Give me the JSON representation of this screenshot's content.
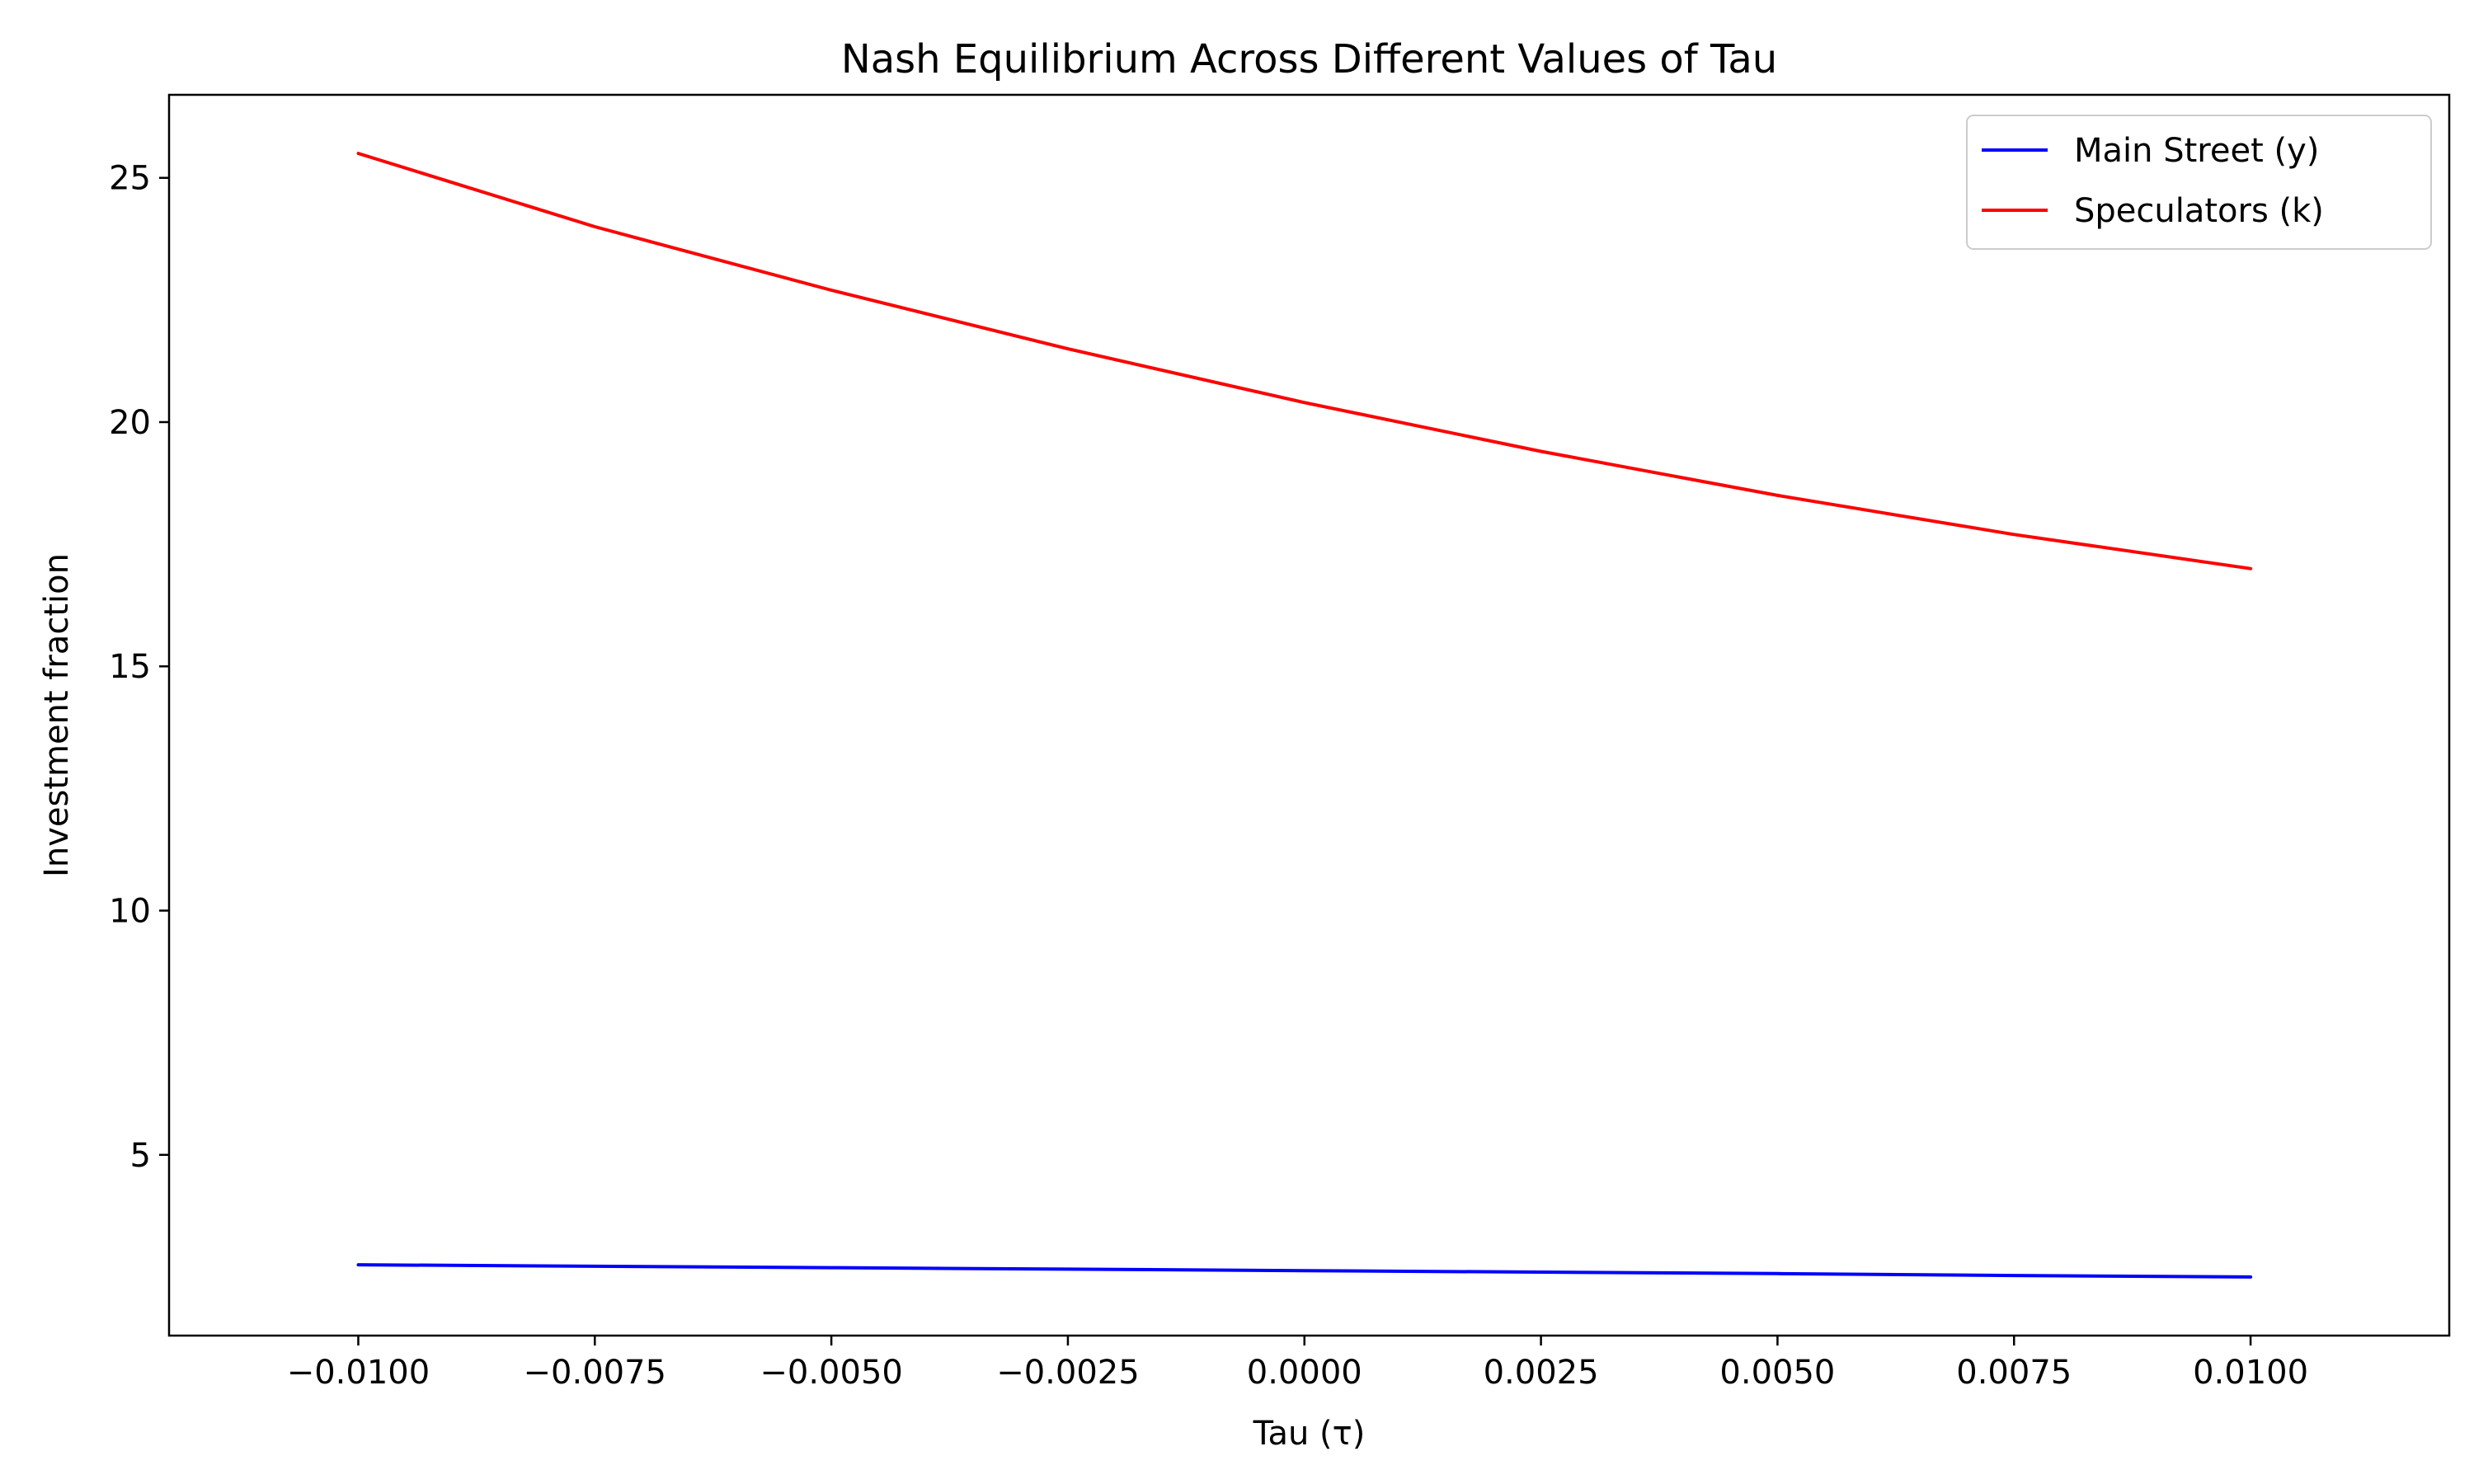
{
  "chart_data": {
    "type": "line",
    "title": "Nash Equilibrium Across Different Values of Tau",
    "xlabel": "Tau (τ)",
    "ylabel": "Investment fraction",
    "xlim": [
      -0.012,
      0.0121
    ],
    "ylim": [
      1.3,
      26.7
    ],
    "x_ticks": [
      -0.01,
      -0.0075,
      -0.005,
      -0.0025,
      0.0,
      0.0025,
      0.005,
      0.0075,
      0.01
    ],
    "x_tick_labels": [
      "−0.0100",
      "−0.0075",
      "−0.0050",
      "−0.0025",
      "0.0000",
      "0.0025",
      "0.0050",
      "0.0075",
      "0.0100"
    ],
    "y_ticks": [
      5,
      10,
      15,
      20,
      25
    ],
    "y_tick_labels": [
      "5",
      "10",
      "15",
      "20",
      "25"
    ],
    "grid": false,
    "legend_position": "top-right",
    "x": [
      -0.01,
      -0.0075,
      -0.005,
      -0.0025,
      0.0,
      0.0025,
      0.005,
      0.0075,
      0.01
    ],
    "series": [
      {
        "name": "Main Street (y)",
        "color": "#0000ff",
        "values": [
          2.75,
          2.72,
          2.69,
          2.66,
          2.63,
          2.6,
          2.57,
          2.53,
          2.5
        ]
      },
      {
        "name": "Speculators (k)",
        "color": "#ff0000",
        "values": [
          25.5,
          24.0,
          22.7,
          21.5,
          20.4,
          19.4,
          18.5,
          17.7,
          17.0
        ]
      }
    ]
  }
}
